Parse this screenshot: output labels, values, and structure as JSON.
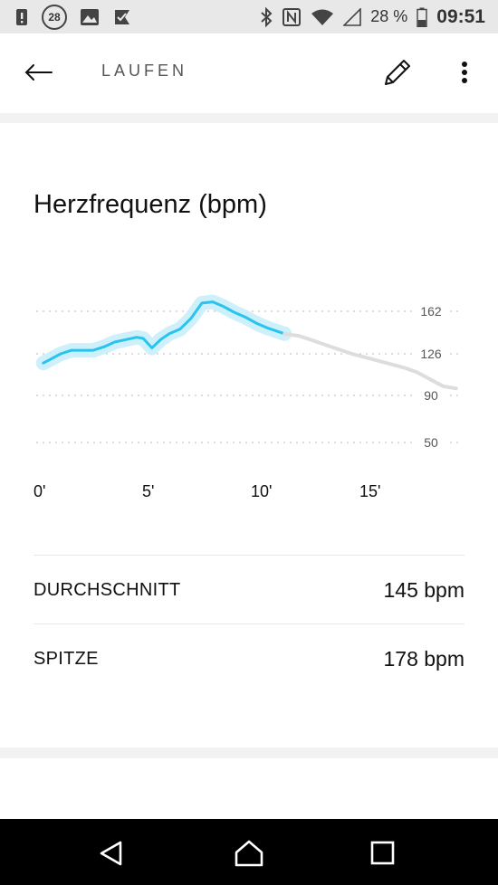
{
  "status_bar": {
    "notification_badge": "28",
    "battery_percent": "28 %",
    "time": "09:51",
    "icons": [
      "alert-icon",
      "calendar-badge-icon",
      "image-icon",
      "download-check-icon",
      "bluetooth-icon",
      "nfc-icon",
      "wifi-icon",
      "signal-icon",
      "battery-icon"
    ]
  },
  "app_bar": {
    "title": "LAUFEN",
    "icons": [
      "back-arrow-icon",
      "pencil-icon",
      "more-vert-icon"
    ]
  },
  "heart_rate": {
    "title": "Herzfrequenz (bpm)",
    "rows": [
      {
        "label": "DURCHSCHNITT",
        "value": "145 bpm"
      },
      {
        "label": "SPITZE",
        "value": "178 bpm"
      }
    ]
  },
  "chart_data": {
    "type": "line",
    "title": "",
    "xlabel": "",
    "ylabel": "",
    "x_ticks": [
      "0'",
      "5'",
      "10'",
      "15'"
    ],
    "y_ticks": [
      162,
      126,
      90,
      50
    ],
    "xlim": [
      0,
      20
    ],
    "ylim": [
      40,
      180
    ],
    "grid": "horizontal-dotted",
    "series": [
      {
        "color": "#29c4ee",
        "x": [
          0.2,
          0.5,
          1.0,
          1.5,
          2.0,
          2.5,
          3.0,
          3.5,
          4.0,
          4.5,
          4.8,
          5.2,
          5.6,
          6.0,
          6.5,
          7.0,
          7.5,
          8.0,
          8.5,
          9.0,
          9.5,
          10.0,
          10.5,
          11.3
        ],
        "y": [
          118,
          121,
          126,
          129,
          129,
          129,
          132,
          136,
          138,
          140,
          139,
          131,
          138,
          143,
          147,
          156,
          169,
          170,
          166,
          161,
          157,
          152,
          148,
          143
        ]
      },
      {
        "color": "#dddddd",
        "x": [
          11.3,
          12.0,
          12.8,
          13.6,
          14.4,
          15.2,
          16.0,
          16.8,
          17.4,
          18.0,
          18.6,
          19.2
        ],
        "y": [
          143,
          141,
          136,
          131,
          126,
          122,
          118,
          114,
          110,
          104,
          98,
          96
        ]
      }
    ]
  },
  "nav_bar": {
    "icons": [
      "back-triangle-icon",
      "home-icon",
      "recents-icon"
    ]
  }
}
